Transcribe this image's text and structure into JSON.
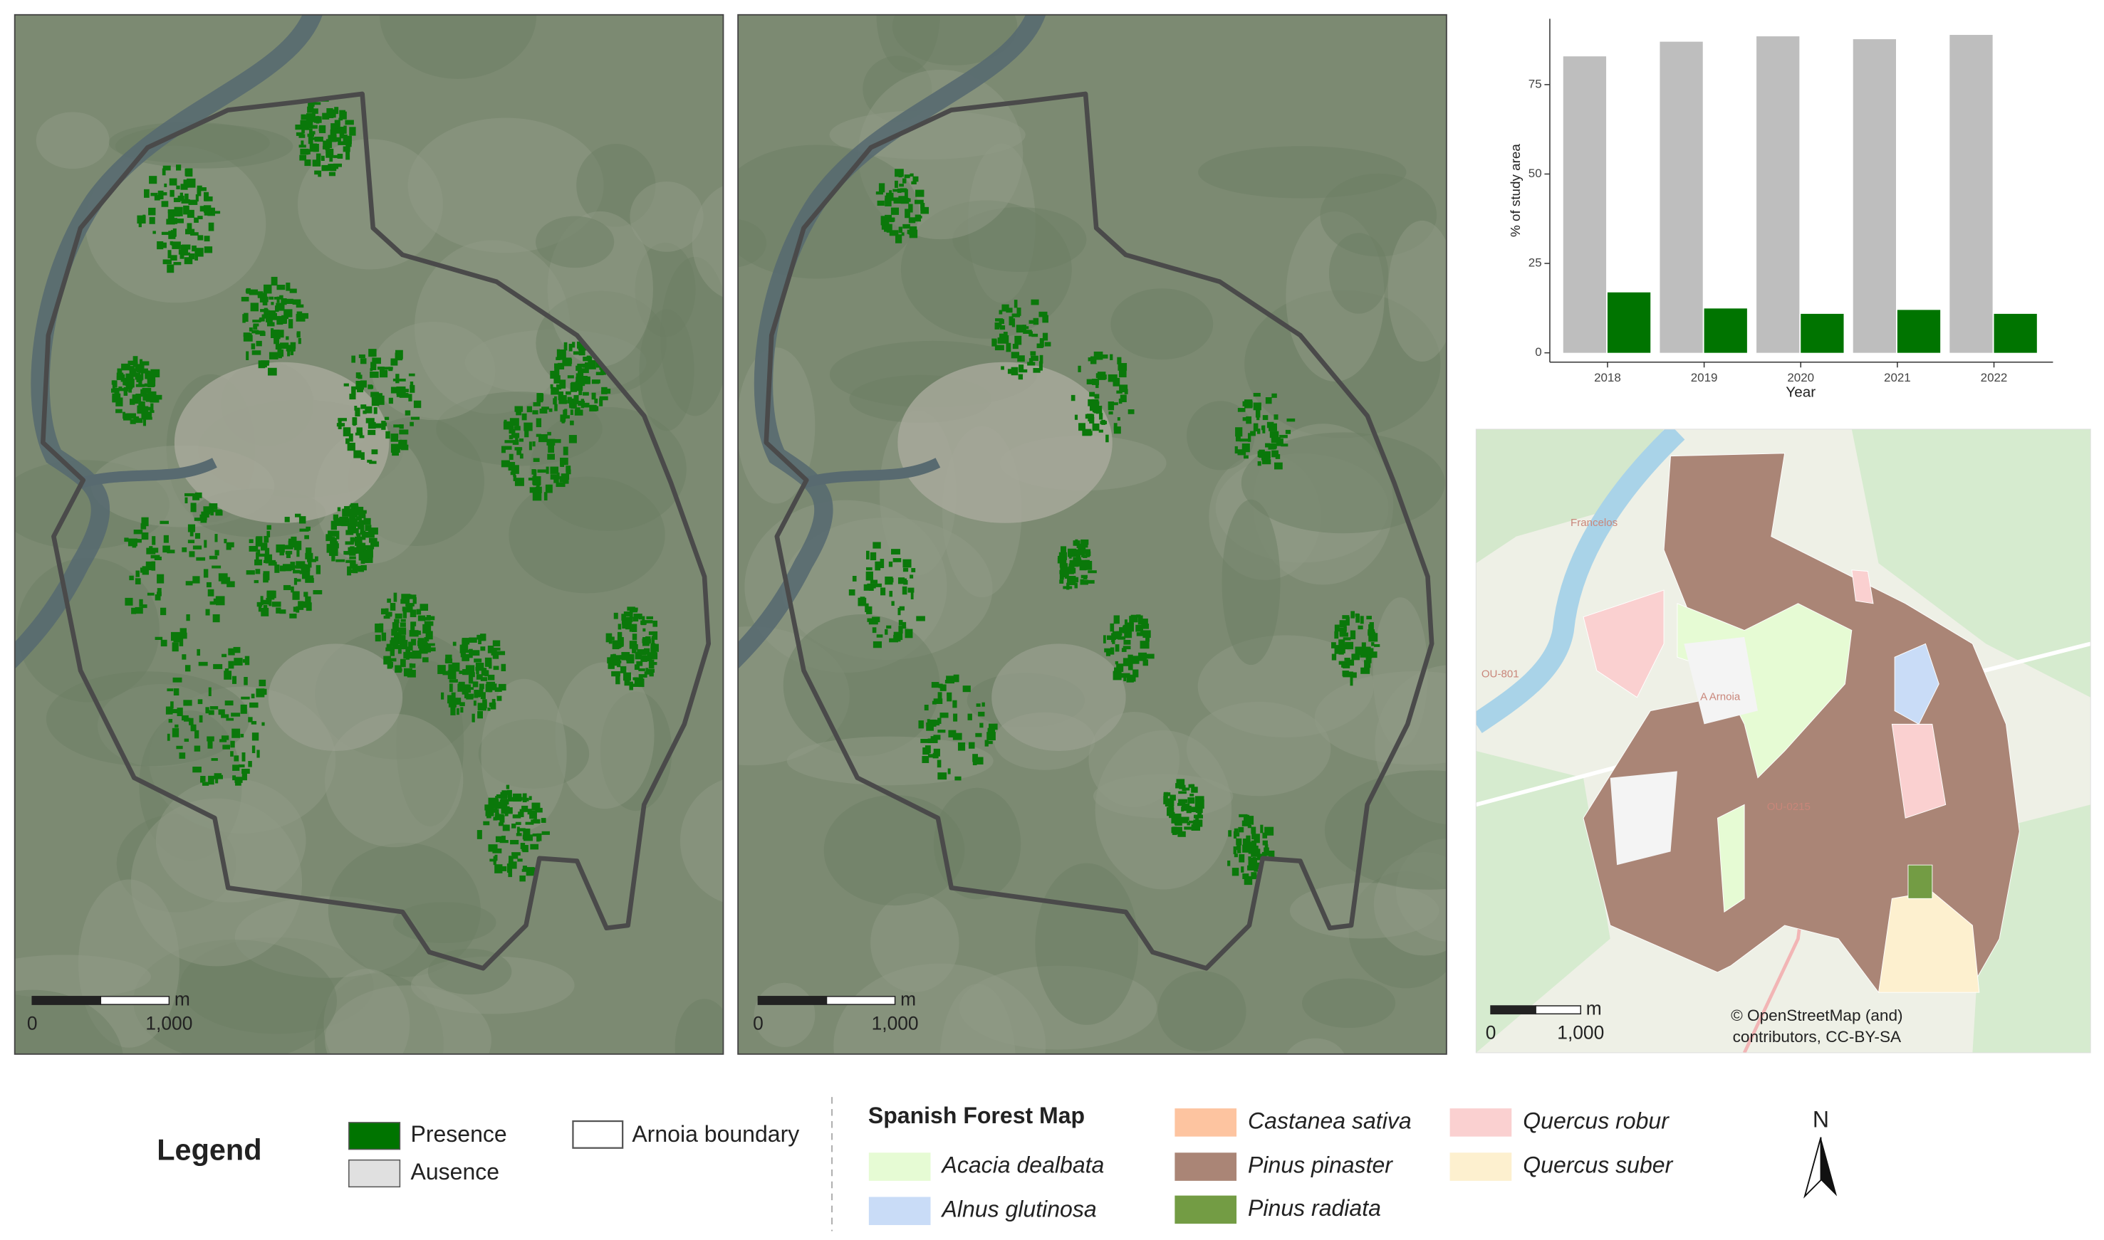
{
  "chart_data": {
    "type": "bar",
    "x_label": "Year",
    "y_label": "% of study area",
    "categories": [
      "2018",
      "2019",
      "2020",
      "2021",
      "2022"
    ],
    "series": [
      {
        "name": "Presence",
        "color": "#007400",
        "values": [
          16.9,
          12.4,
          10.9,
          12,
          10.9
        ]
      },
      {
        "name": "Ausence",
        "color": "#bebebe",
        "values": [
          82.9,
          87,
          88.5,
          87.7,
          88.9
        ]
      }
    ],
    "ylim": [
      -2.6,
      93.4
    ],
    "yticks": [
      0,
      25,
      50,
      75
    ],
    "grid": false
  },
  "maps": [
    {
      "scale_unit": "m",
      "scale_labels": [
        "0",
        "1,000"
      ]
    },
    {
      "scale_unit": "m",
      "scale_labels": [
        "0",
        "1,000"
      ]
    },
    {
      "scale_unit": "m",
      "scale_labels": [
        "0",
        "1,000"
      ]
    }
  ],
  "legend": {
    "title": "Legend",
    "boundary": "Arnoia boundary"
  },
  "forest_map": {
    "title": "Spanish Forest Map",
    "species": [
      {
        "name": "Acacia dealbata",
        "color": "#e6fbd4"
      },
      {
        "name": "Alnus glutinosa",
        "color": "#c9dcf7"
      },
      {
        "name": "Castanea sativa",
        "color": "#fdc4a0"
      },
      {
        "name": "Pinus pinaster",
        "color": "#aa8576"
      },
      {
        "name": "Pinus radiata",
        "color": "#739c44"
      },
      {
        "name": "Quercus robur",
        "color": "#fad0d0"
      },
      {
        "name": "Quercus suber",
        "color": "#fdf0cf"
      }
    ],
    "places": [
      "Francelos",
      "A Arnoia",
      "OU-801",
      "OU-0215"
    ],
    "attribution": [
      "© OpenStreetMap (and)",
      "contributors, CC-BY-SA"
    ]
  },
  "north": "N"
}
